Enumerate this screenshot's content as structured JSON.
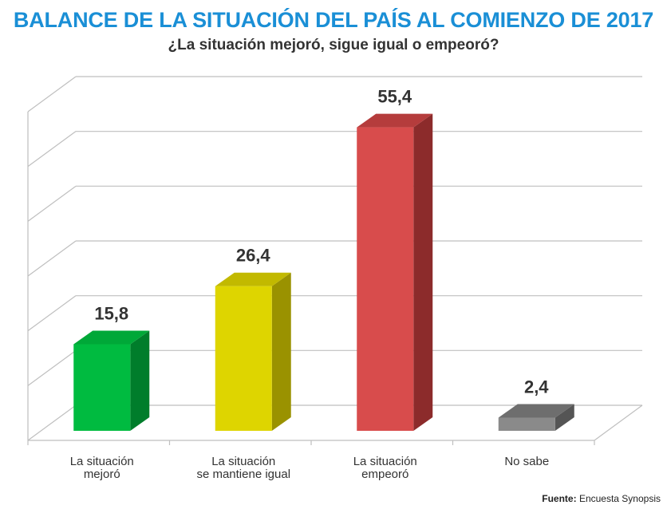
{
  "title": "BALANCE DE LA SITUACIÓN DEL PAÍS AL COMIENZO DE 2017",
  "subtitle": "¿La situación mejoró, sigue igual o empeoró?",
  "source": {
    "label": "Fuente:",
    "text": "Encuesta Synopsis"
  },
  "colors": {
    "title": "#1a8fd6",
    "grid": "#bfbfbf"
  },
  "chart_data": {
    "type": "bar",
    "style": "3d",
    "title": "BALANCE DE LA SITUACIÓN DEL PAÍS AL COMIENZO DE 2017",
    "subtitle": "¿La situación mejoró, sigue igual o empeoró?",
    "categories": [
      [
        "La situación",
        "mejoró"
      ],
      [
        "La situación",
        "se mantiene igual"
      ],
      [
        "La situación",
        "empeoró"
      ],
      [
        "No sabe"
      ]
    ],
    "values": [
      15.8,
      26.4,
      55.4,
      2.4
    ],
    "value_labels": [
      "15,8",
      "26,4",
      "55,4",
      "2,4"
    ],
    "bar_colors": [
      {
        "front": "#00bb40",
        "side": "#007d2b",
        "top": "#00a838"
      },
      {
        "front": "#ded500",
        "side": "#9a9200",
        "top": "#c2b900"
      },
      {
        "front": "#d84c4c",
        "side": "#8c2b2b",
        "top": "#b53c3c"
      },
      {
        "front": "#8a8a8a",
        "side": "#555555",
        "top": "#6e6e6e"
      }
    ],
    "ylim": [
      0,
      60
    ],
    "grid": true,
    "axis_ticks_shown": false,
    "xlabel": "",
    "ylabel": ""
  }
}
